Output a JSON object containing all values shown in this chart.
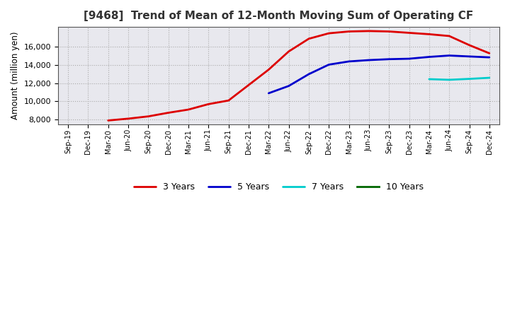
{
  "title": "[9468]  Trend of Mean of 12-Month Moving Sum of Operating CF",
  "ylabel": "Amount (million yen)",
  "figure_bg": "#ffffff",
  "plot_bg": "#e8e8ee",
  "grid_color": "#aaaaaa",
  "ylim": [
    7500,
    18200
  ],
  "yticks": [
    8000,
    10000,
    12000,
    14000,
    16000
  ],
  "x_labels": [
    "Sep-19",
    "Dec-19",
    "Mar-20",
    "Jun-20",
    "Sep-20",
    "Dec-20",
    "Mar-21",
    "Jun-21",
    "Sep-21",
    "Dec-21",
    "Mar-22",
    "Jun-22",
    "Sep-22",
    "Dec-22",
    "Mar-23",
    "Jun-23",
    "Sep-23",
    "Dec-23",
    "Mar-24",
    "Jun-24",
    "Sep-24",
    "Dec-24"
  ],
  "series_3y": {
    "color": "#dd0000",
    "label": "3 Years",
    "x": [
      2,
      3,
      4,
      5,
      6,
      7,
      8,
      9,
      10,
      11,
      12,
      13,
      14,
      15,
      16,
      17,
      18,
      19,
      20,
      21
    ],
    "y": [
      7900,
      8100,
      8350,
      8750,
      9100,
      9700,
      10100,
      11800,
      13500,
      15500,
      16900,
      17500,
      17700,
      17750,
      17700,
      17550,
      17400,
      17200,
      16200,
      15300
    ]
  },
  "series_5y": {
    "color": "#0000cc",
    "label": "5 Years",
    "x": [
      10,
      11,
      12,
      13,
      14,
      15,
      16,
      17,
      18,
      19,
      20,
      21
    ],
    "y": [
      10900,
      11700,
      13000,
      14050,
      14400,
      14550,
      14650,
      14700,
      14900,
      15050,
      14950,
      14850
    ]
  },
  "series_7y": {
    "color": "#00cccc",
    "label": "7 Years",
    "x": [
      18,
      19,
      20,
      21
    ],
    "y": [
      12450,
      12380,
      12480,
      12600
    ]
  },
  "series_10y": {
    "color": "#006600",
    "label": "10 Years",
    "x": [],
    "y": []
  }
}
